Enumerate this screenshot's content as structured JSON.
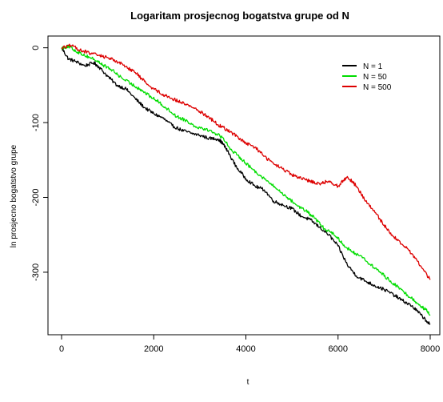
{
  "chart_data": {
    "type": "line",
    "title": "Logaritam prosjecnog bogatstva grupe od N",
    "xlabel": "t",
    "ylabel": "ln prosjecno bogatstvo grupe",
    "xlim": [
      0,
      8000
    ],
    "ylim": [
      -375,
      5
    ],
    "x_ticks": [
      0,
      2000,
      4000,
      6000,
      8000
    ],
    "y_ticks": [
      0,
      -100,
      -200,
      -300
    ],
    "grid": false,
    "legend_position": "top-right",
    "series": [
      {
        "name": "N = 1",
        "color": "#000000",
        "points": [
          [
            0,
            0
          ],
          [
            150,
            -15
          ],
          [
            300,
            -18
          ],
          [
            500,
            -24
          ],
          [
            700,
            -20
          ],
          [
            800,
            -25
          ],
          [
            1000,
            -38
          ],
          [
            1200,
            -50
          ],
          [
            1400,
            -55
          ],
          [
            1600,
            -68
          ],
          [
            1800,
            -80
          ],
          [
            2000,
            -88
          ],
          [
            2200,
            -94
          ],
          [
            2400,
            -104
          ],
          [
            2600,
            -110
          ],
          [
            2800,
            -114
          ],
          [
            3000,
            -117
          ],
          [
            3200,
            -121
          ],
          [
            3400,
            -122
          ],
          [
            3500,
            -128
          ],
          [
            3600,
            -138
          ],
          [
            3800,
            -160
          ],
          [
            4000,
            -175
          ],
          [
            4200,
            -185
          ],
          [
            4400,
            -190
          ],
          [
            4600,
            -205
          ],
          [
            4800,
            -210
          ],
          [
            5000,
            -215
          ],
          [
            5200,
            -225
          ],
          [
            5400,
            -230
          ],
          [
            5600,
            -240
          ],
          [
            5800,
            -250
          ],
          [
            6000,
            -265
          ],
          [
            6200,
            -290
          ],
          [
            6400,
            -305
          ],
          [
            6600,
            -312
          ],
          [
            6800,
            -318
          ],
          [
            7000,
            -323
          ],
          [
            7200,
            -330
          ],
          [
            7400,
            -338
          ],
          [
            7600,
            -345
          ],
          [
            7800,
            -357
          ],
          [
            8000,
            -370
          ]
        ]
      },
      {
        "name": "N = 50",
        "color": "#00dd00",
        "points": [
          [
            0,
            0
          ],
          [
            150,
            2
          ],
          [
            300,
            -4
          ],
          [
            500,
            -10
          ],
          [
            700,
            -15
          ],
          [
            900,
            -23
          ],
          [
            1100,
            -30
          ],
          [
            1300,
            -40
          ],
          [
            1500,
            -48
          ],
          [
            1700,
            -55
          ],
          [
            1900,
            -64
          ],
          [
            2100,
            -72
          ],
          [
            2300,
            -82
          ],
          [
            2500,
            -92
          ],
          [
            2700,
            -97
          ],
          [
            2900,
            -105
          ],
          [
            3100,
            -108
          ],
          [
            3300,
            -113
          ],
          [
            3500,
            -120
          ],
          [
            3700,
            -138
          ],
          [
            3900,
            -148
          ],
          [
            4100,
            -160
          ],
          [
            4300,
            -170
          ],
          [
            4500,
            -180
          ],
          [
            4700,
            -190
          ],
          [
            4900,
            -200
          ],
          [
            5100,
            -210
          ],
          [
            5300,
            -218
          ],
          [
            5500,
            -228
          ],
          [
            5700,
            -242
          ],
          [
            5900,
            -248
          ],
          [
            6100,
            -262
          ],
          [
            6300,
            -273
          ],
          [
            6500,
            -278
          ],
          [
            6700,
            -290
          ],
          [
            6900,
            -299
          ],
          [
            7100,
            -310
          ],
          [
            7300,
            -320
          ],
          [
            7500,
            -330
          ],
          [
            7700,
            -340
          ],
          [
            7900,
            -350
          ],
          [
            8000,
            -357
          ]
        ]
      },
      {
        "name": "N = 500",
        "color": "#dd0000",
        "points": [
          [
            0,
            0
          ],
          [
            200,
            3
          ],
          [
            400,
            -3
          ],
          [
            600,
            -7
          ],
          [
            800,
            -10
          ],
          [
            1000,
            -13
          ],
          [
            1200,
            -18
          ],
          [
            1400,
            -25
          ],
          [
            1600,
            -33
          ],
          [
            1800,
            -45
          ],
          [
            2000,
            -55
          ],
          [
            2200,
            -62
          ],
          [
            2400,
            -68
          ],
          [
            2600,
            -73
          ],
          [
            2800,
            -78
          ],
          [
            3000,
            -85
          ],
          [
            3200,
            -93
          ],
          [
            3400,
            -103
          ],
          [
            3600,
            -110
          ],
          [
            3800,
            -118
          ],
          [
            4000,
            -128
          ],
          [
            4200,
            -133
          ],
          [
            4400,
            -145
          ],
          [
            4600,
            -155
          ],
          [
            4800,
            -162
          ],
          [
            5000,
            -170
          ],
          [
            5200,
            -175
          ],
          [
            5400,
            -178
          ],
          [
            5600,
            -182
          ],
          [
            5800,
            -178
          ],
          [
            6000,
            -185
          ],
          [
            6200,
            -172
          ],
          [
            6400,
            -185
          ],
          [
            6600,
            -205
          ],
          [
            6800,
            -220
          ],
          [
            7000,
            -237
          ],
          [
            7200,
            -252
          ],
          [
            7400,
            -263
          ],
          [
            7600,
            -275
          ],
          [
            7800,
            -292
          ],
          [
            8000,
            -310
          ]
        ]
      }
    ]
  }
}
